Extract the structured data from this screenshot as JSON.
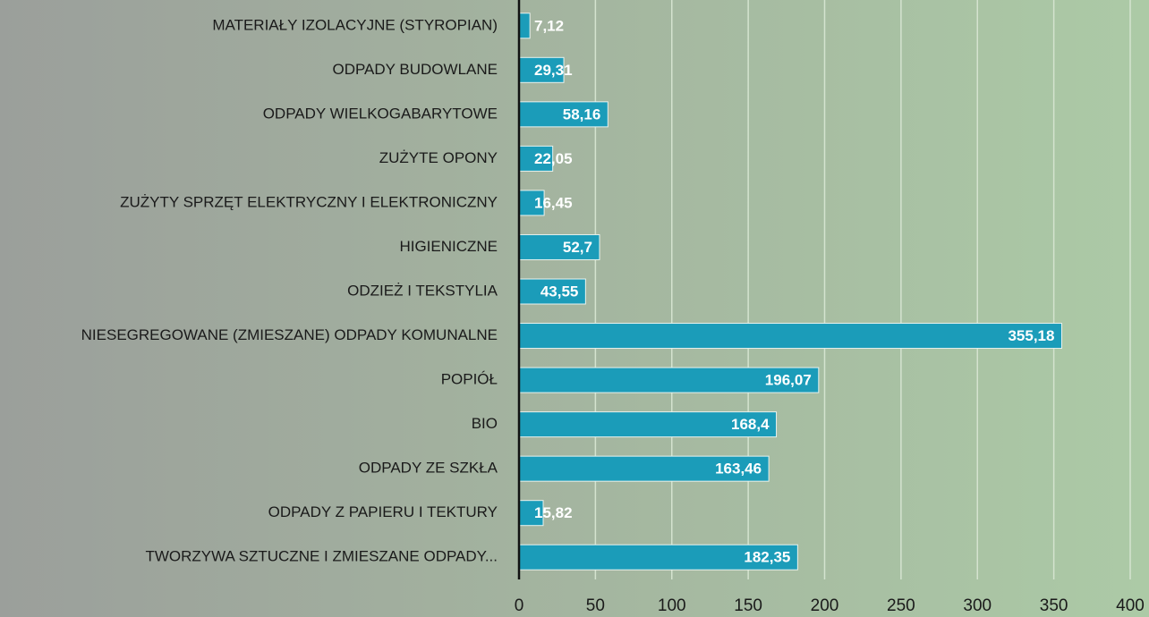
{
  "chart_data": {
    "type": "barh",
    "categories": [
      "MATERIAŁY IZOLACYJNE (STYROPIAN)",
      "ODPADY BUDOWLANE",
      "ODPADY WIELKOGABARYTOWE",
      "ZUŻYTE OPONY",
      "ZUŻYTY SPRZĘT ELEKTRYCZNY I ELEKTRONICZNY",
      "HIGIENICZNE",
      "ODZIEŻ I TEKSTYLIA",
      "NIESEGREGOWANE (ZMIESZANE) ODPADY KOMUNALNE",
      "POPIÓŁ",
      "BIO",
      "ODPADY ZE SZKŁA",
      "ODPADY Z PAPIERU I TEKTURY",
      "TWORZYWA SZTUCZNE I ZMIESZANE ODPADY..."
    ],
    "values": [
      7.12,
      29.31,
      58.16,
      22.05,
      16.45,
      52.7,
      43.55,
      355.18,
      196.07,
      168.4,
      163.46,
      15.82,
      182.35
    ],
    "value_labels": [
      "7,12",
      "29,31",
      "58,16",
      "22,05",
      "16,45",
      "52,7",
      "43,55",
      "355,18",
      "196,07",
      "168,4",
      "163,46",
      "15,82",
      "182,35"
    ],
    "color": "#1b9cb9",
    "xlim": [
      0,
      400
    ],
    "xticks": [
      0,
      50,
      100,
      150,
      200,
      250,
      300,
      350,
      400
    ],
    "grid": true
  }
}
